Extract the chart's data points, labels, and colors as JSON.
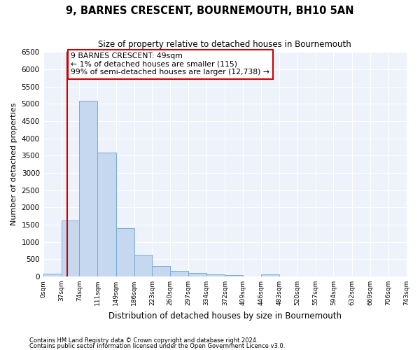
{
  "title": "9, BARNES CRESCENT, BOURNEMOUTH, BH10 5AN",
  "subtitle": "Size of property relative to detached houses in Bournemouth",
  "xlabel": "Distribution of detached houses by size in Bournemouth",
  "ylabel": "Number of detached properties",
  "property_size": 49,
  "annotation_line1": "9 BARNES CRESCENT: 49sqm",
  "annotation_line2": "← 1% of detached houses are smaller (115)",
  "annotation_line3": "99% of semi-detached houses are larger (12,738) →",
  "footer1": "Contains HM Land Registry data © Crown copyright and database right 2024.",
  "footer2": "Contains public sector information licensed under the Open Government Licence v3.0.",
  "bin_edges": [
    0,
    37,
    74,
    111,
    149,
    186,
    223,
    260,
    297,
    334,
    372,
    409,
    446,
    483,
    520,
    557,
    594,
    632,
    669,
    706,
    743
  ],
  "bar_heights": [
    70,
    1630,
    5080,
    3580,
    1400,
    620,
    300,
    155,
    90,
    55,
    40,
    0,
    55,
    0,
    0,
    0,
    0,
    0,
    0,
    0
  ],
  "bar_color": "#c5d8f0",
  "bar_edge_color": "#7aaad4",
  "red_line_color": "#cc0000",
  "annotation_box_color": "#cc0000",
  "background_color": "#edf2fb",
  "ylim": [
    0,
    6500
  ],
  "yticks": [
    0,
    500,
    1000,
    1500,
    2000,
    2500,
    3000,
    3500,
    4000,
    4500,
    5000,
    5500,
    6000,
    6500
  ]
}
